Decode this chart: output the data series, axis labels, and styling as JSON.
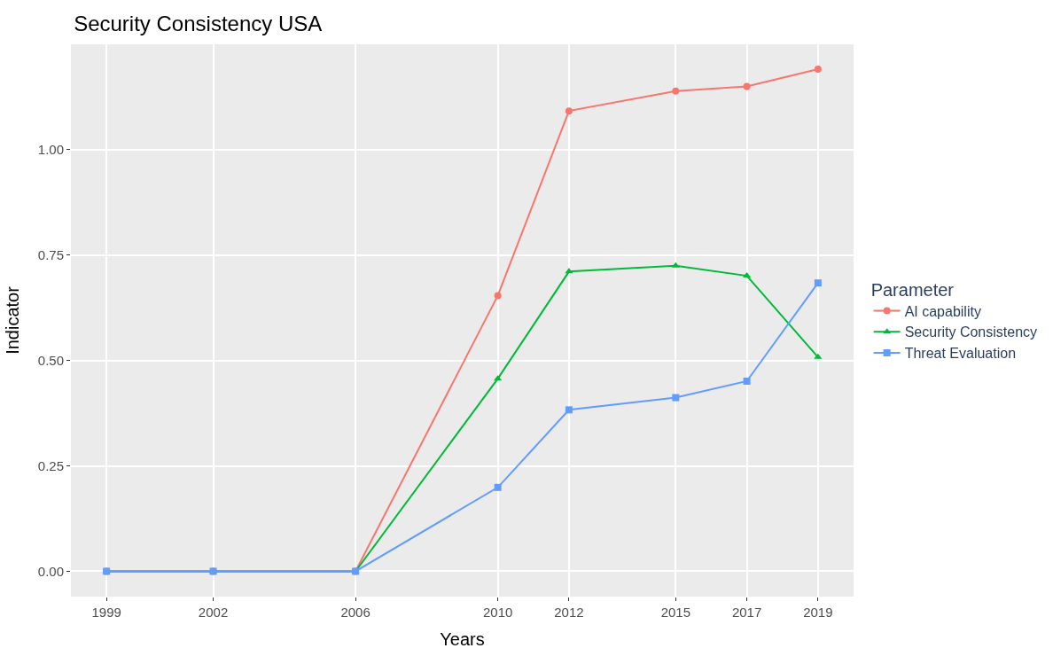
{
  "chart_data": {
    "type": "line",
    "title": "Security Consistency USA",
    "xlabel": "Years",
    "ylabel": "Indicator",
    "legend_title": "Parameter",
    "x": [
      1999,
      2002,
      2006,
      2010,
      2012,
      2015,
      2017,
      2019
    ],
    "series": [
      {
        "name": "AI capability",
        "color": "#f8766d",
        "marker": "circle",
        "values": [
          0,
          0,
          0,
          0.654,
          1.092,
          1.139,
          1.15,
          1.191
        ]
      },
      {
        "name": "Security Consistency",
        "color": "#00ba38",
        "marker": "triangle",
        "values": [
          0,
          0,
          0,
          0.457,
          0.711,
          0.725,
          0.701,
          0.508
        ]
      },
      {
        "name": "Threat Evaluation",
        "color": "#619cff",
        "marker": "square",
        "values": [
          0,
          0,
          0,
          0.199,
          0.383,
          0.412,
          0.451,
          0.684
        ]
      }
    ],
    "xlim": [
      1998,
      2020
    ],
    "xticks": [
      1999,
      2002,
      2006,
      2010,
      2012,
      2015,
      2017,
      2019
    ],
    "ylim": [
      -0.06,
      1.25
    ],
    "yticks": [
      {
        "value": 0,
        "label": "0.00"
      },
      {
        "value": 0.25,
        "label": "0.25"
      },
      {
        "value": 0.5,
        "label": "0.50"
      },
      {
        "value": 0.75,
        "label": "0.75"
      },
      {
        "value": 1,
        "label": "1.00"
      }
    ],
    "grid": true,
    "legend": "right",
    "line_style": "solid"
  }
}
